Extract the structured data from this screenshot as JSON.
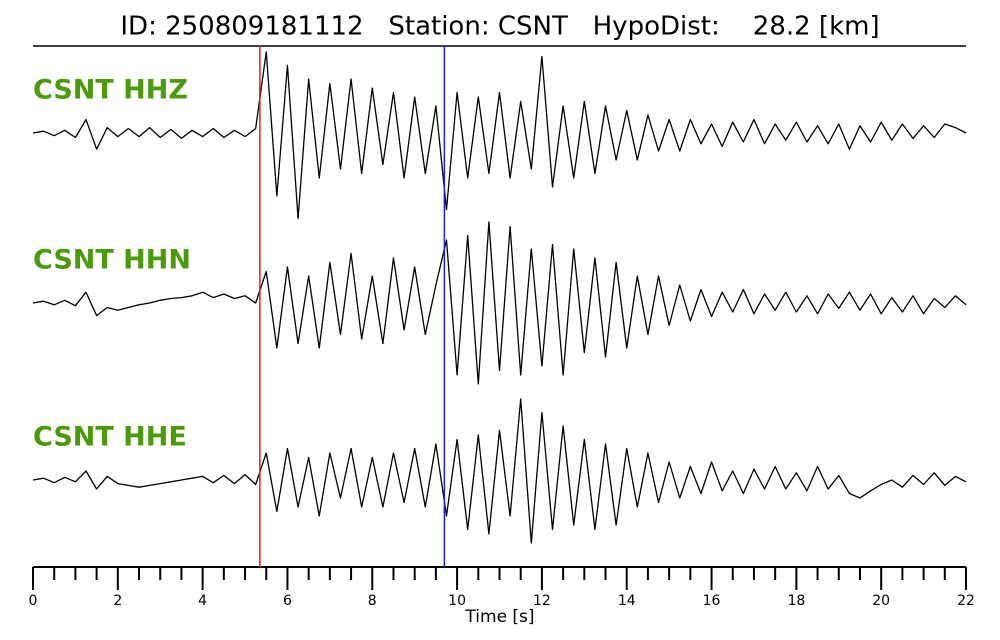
{
  "chart_data": {
    "type": "line",
    "title": "ID: 250809181112   Station: CSNT   HypoDist:    28.2 [km]",
    "xlabel": "Time [s]",
    "xlim": [
      0,
      22
    ],
    "xticks": [
      0,
      2,
      4,
      6,
      8,
      10,
      12,
      14,
      16,
      18,
      20,
      22
    ],
    "xminorticks": [
      0.5,
      1,
      1.5,
      2.5,
      3,
      3.5,
      4.5,
      5,
      5.5,
      6.5,
      7,
      7.5,
      8.5,
      9,
      9.5,
      10.5,
      11,
      11.5,
      12.5,
      13,
      13.5,
      14.5,
      15,
      15.5,
      16.5,
      17,
      17.5,
      18.5,
      19,
      19.5,
      20.5,
      21,
      21.5
    ],
    "ylim": [
      -1,
      1
    ],
    "label_color": "#4a9a0a",
    "markers": [
      {
        "x": 5.35,
        "color": "#e02020"
      },
      {
        "x": 9.7,
        "color": "#2020e0"
      }
    ],
    "x": [
      0,
      0.25,
      0.5,
      0.75,
      1,
      1.25,
      1.5,
      1.75,
      2,
      2.25,
      2.5,
      2.75,
      3,
      3.25,
      3.5,
      3.75,
      4,
      4.25,
      4.5,
      4.75,
      5,
      5.25,
      5.5,
      5.75,
      6,
      6.25,
      6.5,
      6.75,
      7,
      7.25,
      7.5,
      7.75,
      8,
      8.25,
      8.5,
      8.75,
      9,
      9.25,
      9.5,
      9.75,
      10,
      10.25,
      10.5,
      10.75,
      11,
      11.25,
      11.5,
      11.75,
      12,
      12.25,
      12.5,
      12.75,
      13,
      13.25,
      13.5,
      13.75,
      14,
      14.25,
      14.5,
      14.75,
      15,
      15.25,
      15.5,
      15.75,
      16,
      16.25,
      16.5,
      16.75,
      17,
      17.25,
      17.5,
      17.75,
      18,
      18.25,
      18.5,
      18.75,
      19,
      19.25,
      19.5,
      19.75,
      20,
      20.25,
      20.5,
      20.75,
      21,
      21.25,
      21.5,
      21.75,
      22
    ],
    "series": [
      {
        "name": "CSNT HHZ",
        "color": "#000000",
        "values": [
          0,
          0.02,
          -0.03,
          0.03,
          -0.05,
          0.15,
          -0.18,
          0.06,
          -0.04,
          0.05,
          -0.04,
          0.06,
          -0.05,
          0.04,
          -0.06,
          0.03,
          -0.04,
          0.05,
          -0.05,
          0.03,
          -0.04,
          0.05,
          0.9,
          -0.7,
          0.75,
          -0.95,
          0.6,
          -0.5,
          0.55,
          -0.4,
          0.6,
          -0.45,
          0.5,
          -0.35,
          0.45,
          -0.5,
          0.4,
          -0.45,
          0.3,
          -0.85,
          0.45,
          -0.5,
          0.4,
          -0.45,
          0.45,
          -0.5,
          0.35,
          -0.4,
          0.85,
          -0.6,
          0.3,
          -0.5,
          0.35,
          -0.45,
          0.3,
          -0.3,
          0.25,
          -0.3,
          0.2,
          -0.2,
          0.15,
          -0.2,
          0.15,
          -0.12,
          0.1,
          -0.15,
          0.12,
          -0.1,
          0.15,
          -0.12,
          0.1,
          -0.08,
          0.12,
          -0.1,
          0.08,
          -0.12,
          0.1,
          -0.18,
          0.08,
          -0.1,
          0.12,
          -0.08,
          0.1,
          -0.06,
          0.08,
          -0.05,
          0.1,
          0.06,
          0.0
        ]
      },
      {
        "name": "CSNT HHN",
        "color": "#000000",
        "values": [
          0,
          0.02,
          -0.02,
          0.03,
          -0.03,
          0.12,
          -0.14,
          -0.05,
          -0.08,
          -0.05,
          -0.02,
          0.0,
          0.03,
          0.05,
          0.06,
          0.08,
          0.12,
          0.06,
          0.1,
          0.05,
          0.08,
          0.0,
          0.35,
          -0.5,
          0.4,
          -0.45,
          0.3,
          -0.5,
          0.45,
          -0.35,
          0.55,
          -0.4,
          0.3,
          -0.45,
          0.5,
          -0.3,
          0.4,
          -0.35,
          0.2,
          0.7,
          -0.8,
          0.75,
          -0.9,
          0.9,
          -0.75,
          0.85,
          -0.8,
          0.6,
          -0.7,
          0.65,
          -0.8,
          0.6,
          -0.55,
          0.5,
          -0.6,
          0.45,
          -0.5,
          0.3,
          -0.35,
          0.3,
          -0.25,
          0.2,
          -0.2,
          0.15,
          -0.15,
          0.12,
          -0.1,
          0.15,
          -0.12,
          0.1,
          -0.08,
          0.12,
          -0.1,
          0.08,
          -0.12,
          0.1,
          -0.06,
          0.12,
          -0.08,
          0.1,
          -0.12,
          0.06,
          -0.1,
          0.08,
          -0.12,
          0.05,
          -0.05,
          0.08,
          -0.02
        ]
      },
      {
        "name": "CSNT HHE",
        "color": "#000000",
        "values": [
          0,
          0.02,
          -0.03,
          0.03,
          -0.02,
          0.1,
          -0.1,
          0.04,
          -0.04,
          -0.06,
          -0.08,
          -0.06,
          -0.04,
          -0.02,
          0.0,
          0.02,
          0.04,
          -0.03,
          0.05,
          -0.04,
          0.06,
          -0.05,
          0.3,
          -0.35,
          0.35,
          -0.3,
          0.25,
          -0.4,
          0.3,
          -0.2,
          0.35,
          -0.3,
          0.25,
          -0.3,
          0.3,
          -0.25,
          0.35,
          -0.3,
          0.4,
          -0.4,
          0.45,
          -0.55,
          0.5,
          -0.6,
          0.55,
          -0.4,
          0.9,
          -0.7,
          0.75,
          -0.55,
          0.6,
          -0.5,
          0.45,
          -0.55,
          0.4,
          -0.5,
          0.35,
          -0.3,
          0.3,
          -0.25,
          0.2,
          -0.2,
          0.15,
          -0.15,
          0.2,
          -0.12,
          0.1,
          -0.15,
          0.12,
          -0.1,
          0.15,
          -0.1,
          0.08,
          -0.12,
          0.15,
          -0.1,
          0.05,
          -0.15,
          -0.2,
          -0.12,
          -0.05,
          0.0,
          -0.08,
          0.05,
          -0.05,
          0.08,
          -0.06,
          0.04,
          -0.02
        ]
      }
    ]
  }
}
